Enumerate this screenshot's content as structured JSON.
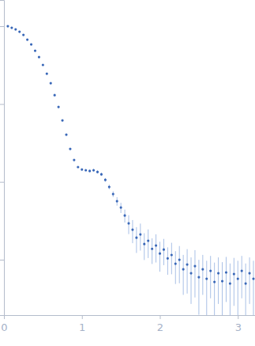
{
  "chart_data": {
    "type": "scatter",
    "log": "y",
    "tick_labels": "x",
    "color": "#3a68b8",
    "marker": "circle",
    "xlim": [
      0,
      3.22
    ],
    "xticks": [
      0,
      1,
      2,
      3
    ],
    "ylim": [
      0.000194,
      2.17
    ],
    "yticks": [
      0.001,
      0.01,
      0.1,
      1
    ],
    "x": [
      0.05,
      0.1,
      0.15,
      0.2,
      0.25,
      0.3,
      0.35,
      0.4,
      0.45,
      0.5,
      0.55,
      0.6,
      0.65,
      0.7,
      0.75,
      0.8,
      0.85,
      0.9,
      0.95,
      1.0,
      1.05,
      1.1,
      1.15,
      1.2,
      1.25,
      1.3,
      1.35,
      1.4,
      1.45,
      1.5,
      1.55,
      1.6,
      1.65,
      1.7,
      1.75,
      1.8,
      1.85,
      1.9,
      1.95,
      2.0,
      2.05,
      2.1,
      2.15,
      2.2,
      2.25,
      2.3,
      2.35,
      2.4,
      2.45,
      2.5,
      2.55,
      2.6,
      2.65,
      2.7,
      2.75,
      2.8,
      2.85,
      2.9,
      2.95,
      3.0,
      3.05,
      3.1,
      3.15,
      3.2
    ],
    "values": [
      1.0,
      0.955,
      0.91,
      0.849,
      0.773,
      0.671,
      0.583,
      0.484,
      0.401,
      0.318,
      0.245,
      0.185,
      0.13,
      0.0917,
      0.0616,
      0.0404,
      0.0265,
      0.0191,
      0.0155,
      0.0144,
      0.0141,
      0.0138,
      0.0141,
      0.0134,
      0.0125,
      0.0106,
      0.00861,
      0.00697,
      0.00565,
      0.00468,
      0.0037,
      0.00293,
      0.00243,
      0.00192,
      0.00211,
      0.00159,
      0.00175,
      0.00138,
      0.00152,
      0.0012,
      0.00135,
      0.00104,
      0.00115,
      0.000887,
      0.000998,
      0.000753,
      0.000867,
      0.00067,
      0.000827,
      0.000596,
      0.000753,
      0.000569,
      0.000719,
      0.000518,
      0.00067,
      0.00053,
      0.000686,
      0.000494,
      0.000655,
      0.000569,
      0.000719,
      0.000494,
      0.00067,
      0.000569
    ],
    "errors": [
      0.02,
      0.005,
      0.004,
      0.004,
      0.003,
      0.003,
      0.003,
      0.002,
      0.002,
      0.002,
      0.002,
      0.0015,
      0.001,
      0.0008,
      0.0006,
      0.0004,
      0.0003,
      0.0003,
      0.0003,
      0.0004,
      0.0004,
      0.0005,
      0.0006,
      0.0006,
      0.0006,
      0.0006,
      0.0006,
      0.0006,
      0.0007,
      0.0007,
      0.0007,
      0.0008,
      0.0008,
      0.0007,
      0.0008,
      0.0006,
      0.0007,
      0.0005,
      0.0006,
      0.0005,
      0.0005,
      0.0004,
      0.0005,
      0.0004,
      0.0005,
      0.0004,
      0.0005,
      0.0004,
      0.0005,
      0.0004,
      0.0004,
      0.0004,
      0.0004,
      0.0004,
      0.0004,
      0.0004,
      0.0004,
      0.0004,
      0.0004,
      0.0004,
      0.0004,
      0.0004,
      0.0004,
      0.0004
    ]
  }
}
